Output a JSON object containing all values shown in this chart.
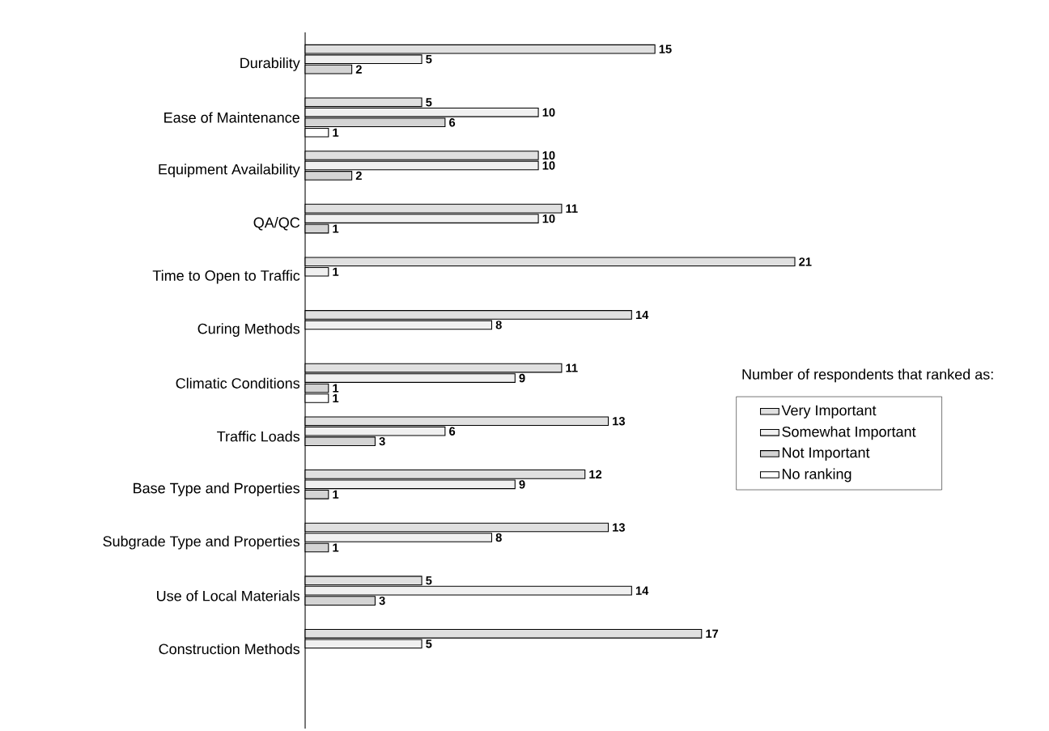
{
  "chart_data": {
    "type": "bar",
    "orientation": "horizontal",
    "legend_title": "Number of respondents that ranked as:",
    "categories": [
      "Durability",
      "Ease of Maintenance",
      "Equipment Availability",
      "QA/QC",
      "Time to Open to Traffic",
      "Curing Methods",
      "Climatic Conditions",
      "Traffic Loads",
      "Base Type and Properties",
      "Subgrade Type and Properties",
      "Use of Local Materials",
      "Construction Methods"
    ],
    "series": [
      {
        "name": "Very Important",
        "color": "#e0e0e0",
        "values": [
          15,
          5,
          10,
          11,
          21,
          14,
          11,
          13,
          12,
          13,
          5,
          17
        ]
      },
      {
        "name": "Somewhat Important",
        "color": "#f0f0f0",
        "values": [
          5,
          10,
          10,
          10,
          1,
          8,
          9,
          6,
          9,
          8,
          14,
          5
        ]
      },
      {
        "name": "Not Important",
        "color": "#d4d4d4",
        "values": [
          2,
          6,
          2,
          1,
          null,
          null,
          1,
          3,
          1,
          1,
          3,
          null
        ]
      },
      {
        "name": "No ranking",
        "color": "#ffffff",
        "values": [
          null,
          1,
          null,
          null,
          null,
          null,
          1,
          null,
          null,
          null,
          null,
          null
        ]
      }
    ],
    "data_labels": true,
    "legend": "right"
  }
}
